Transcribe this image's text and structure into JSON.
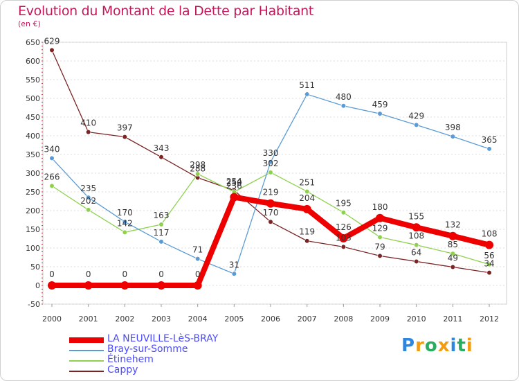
{
  "header": {
    "title": "Evolution du Montant de la Dette par Habitant",
    "unit": "(en €)"
  },
  "chart_data": {
    "type": "line",
    "title": "Evolution du Montant de la Dette par Habitant",
    "ylabel": "(en €)",
    "xlabel": "",
    "ylim": [
      -50,
      650
    ],
    "yticks": [
      -50,
      0,
      50,
      100,
      150,
      200,
      250,
      300,
      350,
      400,
      450,
      500,
      550,
      600,
      650
    ],
    "x": [
      "2000",
      "2001",
      "2002",
      "2003",
      "2004",
      "2005",
      "2006",
      "2007",
      "2008",
      "2009",
      "2010",
      "2011",
      "2012"
    ],
    "grid": "horizontal dotted",
    "legend_position": "bottom-left",
    "series": [
      {
        "name": "LA NEUVILLE-LèS-BRAY",
        "color": "#ee0000",
        "values": [
          0,
          0,
          0,
          0,
          0,
          236,
          219,
          204,
          126,
          180,
          155,
          132,
          108
        ]
      },
      {
        "name": "Bray-sur-Somme",
        "color": "#5b9bd5",
        "values": [
          340,
          235,
          170,
          117,
          71,
          31,
          330,
          511,
          480,
          459,
          429,
          398,
          365
        ]
      },
      {
        "name": "Étinehem",
        "color": "#8fd14f",
        "values": [
          266,
          202,
          142,
          163,
          298,
          250,
          302,
          251,
          195,
          129,
          108,
          85,
          56
        ]
      },
      {
        "name": "Cappy",
        "color": "#7b2424",
        "values": [
          629,
          410,
          397,
          343,
          288,
          254,
          170,
          119,
          103,
          79,
          64,
          49,
          34
        ]
      }
    ]
  },
  "brand": {
    "letters": [
      "P",
      "r",
      "o",
      "x",
      "i",
      "t",
      "i"
    ],
    "colors": [
      "#2e86de",
      "#f39c12",
      "#27ae60",
      "#f39c12",
      "#2e86de",
      "#27ae60",
      "#f39c12"
    ]
  }
}
